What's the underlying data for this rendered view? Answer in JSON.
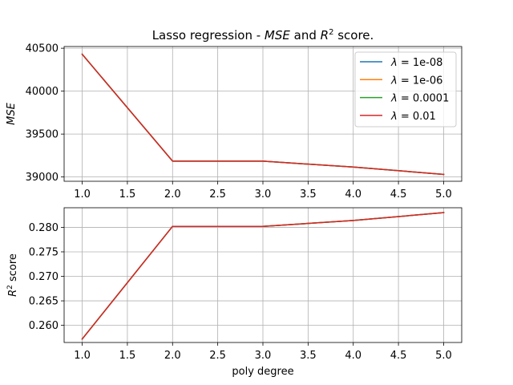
{
  "title_prefix": "Lasso regression - ",
  "title_mse": "MSE",
  "title_mid": " and ",
  "title_r": "R",
  "title_sup": "2",
  "title_suffix": " score.",
  "colors": {
    "grid": "#b0b0b0",
    "series": [
      "#1f77b4",
      "#ff7f0e",
      "#2ca02c",
      "#d62728"
    ]
  },
  "chart_data": [
    {
      "type": "line",
      "ylabel": "MSE",
      "xlabel": "",
      "xlim": [
        0.8,
        5.2
      ],
      "ylim": [
        38950,
        40520
      ],
      "xticks": [
        "1.0",
        "1.5",
        "2.0",
        "2.5",
        "3.0",
        "3.5",
        "4.0",
        "4.5",
        "5.0"
      ],
      "xtick_values": [
        1.0,
        1.5,
        2.0,
        2.5,
        3.0,
        3.5,
        4.0,
        4.5,
        5.0
      ],
      "yticks": [
        "39000",
        "39500",
        "40000",
        "40500"
      ],
      "ytick_values": [
        39000,
        39500,
        40000,
        40500
      ],
      "grid": true,
      "legend": "top-right",
      "x": [
        1,
        2,
        3,
        4,
        5
      ],
      "series": [
        {
          "name": "1e-08",
          "values": [
            40430,
            39185,
            39185,
            39115,
            39030
          ]
        },
        {
          "name": "1e-06",
          "values": [
            40430,
            39185,
            39185,
            39115,
            39030
          ]
        },
        {
          "name": "0.0001",
          "values": [
            40430,
            39185,
            39185,
            39115,
            39030
          ]
        },
        {
          "name": "0.01",
          "values": [
            40430,
            39185,
            39185,
            39115,
            39030
          ]
        }
      ]
    },
    {
      "type": "line",
      "ylabel_r": "R",
      "ylabel_sup": "2",
      "ylabel_rest": " score",
      "xlabel": "poly degree",
      "xlim": [
        0.8,
        5.2
      ],
      "ylim": [
        0.2565,
        0.284
      ],
      "xticks": [
        "1.0",
        "1.5",
        "2.0",
        "2.5",
        "3.0",
        "3.5",
        "4.0",
        "4.5",
        "5.0"
      ],
      "xtick_values": [
        1.0,
        1.5,
        2.0,
        2.5,
        3.0,
        3.5,
        4.0,
        4.5,
        5.0
      ],
      "yticks": [
        "0.260",
        "0.265",
        "0.270",
        "0.275",
        "0.280"
      ],
      "ytick_values": [
        0.26,
        0.265,
        0.27,
        0.275,
        0.28
      ],
      "grid": true,
      "x": [
        1,
        2,
        3,
        4,
        5
      ],
      "series": [
        {
          "values": [
            0.2572,
            0.2802,
            0.2802,
            0.2814,
            0.283
          ]
        },
        {
          "values": [
            0.2572,
            0.2802,
            0.2802,
            0.2814,
            0.283
          ]
        },
        {
          "values": [
            0.2572,
            0.2802,
            0.2802,
            0.2814,
            0.283
          ]
        },
        {
          "values": [
            0.2572,
            0.2802,
            0.2802,
            0.2814,
            0.283
          ]
        }
      ]
    }
  ]
}
